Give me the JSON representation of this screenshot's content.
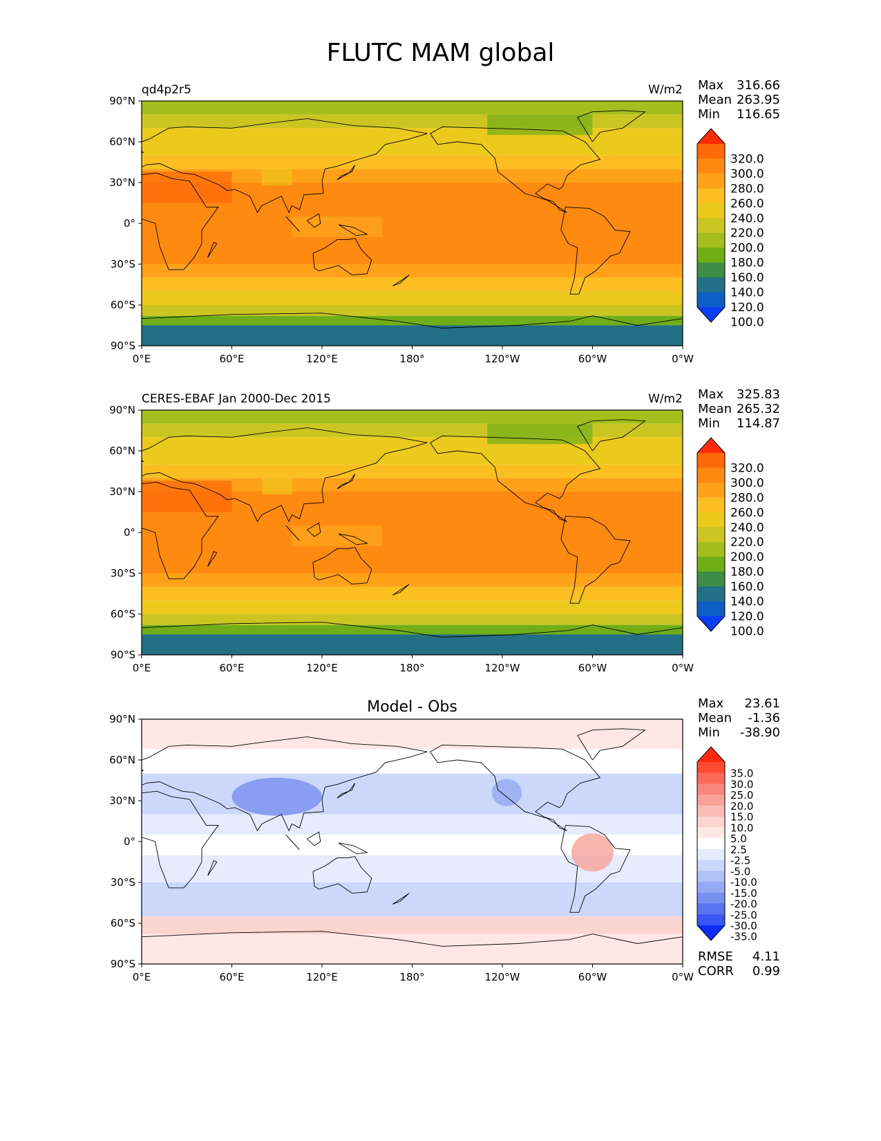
{
  "figure": {
    "title": "FLUTC MAM global"
  },
  "chart_data": [
    {
      "type": "heatmap",
      "title_left": "qd4p2r5",
      "title_center": "",
      "units": "W/m2",
      "stats": [
        {
          "label": "Max",
          "value": "316.66"
        },
        {
          "label": "Mean",
          "value": "263.95"
        },
        {
          "label": "Min",
          "value": "116.65"
        }
      ],
      "extra_stats": [],
      "xticks": [
        "0°E",
        "60°E",
        "120°E",
        "180°",
        "120°W",
        "60°W",
        "0°W"
      ],
      "yticks": [
        "90°N",
        "60°N",
        "30°N",
        "0°",
        "30°S",
        "60°S",
        "90°S"
      ],
      "xlim": [
        0,
        360
      ],
      "ylim": [
        -90,
        90
      ],
      "colorbar": {
        "levels": [
          "320.0",
          "300.0",
          "280.0",
          "260.0",
          "240.0",
          "220.0",
          "200.0",
          "180.0",
          "160.0",
          "140.0",
          "120.0",
          "100.0"
        ],
        "colors": [
          "#ff2a08",
          "#ff6a08",
          "#ff8a12",
          "#ffa21a",
          "#fbbf22",
          "#ecc91d",
          "#cbc522",
          "#a4be1e",
          "#70ae18",
          "#3d8c48",
          "#236f86",
          "#0e5fc3",
          "#0a3df4"
        ]
      }
    },
    {
      "type": "heatmap",
      "title_left": "CERES-EBAF Jan 2000-Dec 2015",
      "title_center": "",
      "units": "W/m2",
      "stats": [
        {
          "label": "Max",
          "value": "325.83"
        },
        {
          "label": "Mean",
          "value": "265.32"
        },
        {
          "label": "Min",
          "value": "114.87"
        }
      ],
      "extra_stats": [],
      "xticks": [
        "0°E",
        "60°E",
        "120°E",
        "180°",
        "120°W",
        "60°W",
        "0°W"
      ],
      "yticks": [
        "90°N",
        "60°N",
        "30°N",
        "0°",
        "30°S",
        "60°S",
        "90°S"
      ],
      "xlim": [
        0,
        360
      ],
      "ylim": [
        -90,
        90
      ],
      "colorbar": {
        "levels": [
          "320.0",
          "300.0",
          "280.0",
          "260.0",
          "240.0",
          "220.0",
          "200.0",
          "180.0",
          "160.0",
          "140.0",
          "120.0",
          "100.0"
        ],
        "colors": [
          "#ff2a08",
          "#ff6a08",
          "#ff8a12",
          "#ffa21a",
          "#fbbf22",
          "#ecc91d",
          "#cbc522",
          "#a4be1e",
          "#70ae18",
          "#3d8c48",
          "#236f86",
          "#0e5fc3",
          "#0a3df4"
        ]
      }
    },
    {
      "type": "heatmap",
      "title_left": "",
      "title_center": "Model - Obs",
      "units": "",
      "stats": [
        {
          "label": "Max",
          "value": "23.61"
        },
        {
          "label": "Mean",
          "value": "-1.36"
        },
        {
          "label": "Min",
          "value": "-38.90"
        }
      ],
      "extra_stats": [
        {
          "label": "RMSE",
          "value": "4.11"
        },
        {
          "label": "CORR",
          "value": "0.99"
        }
      ],
      "xticks": [
        "0°E",
        "60°E",
        "120°E",
        "180°",
        "120°W",
        "60°W",
        "0°W"
      ],
      "yticks": [
        "90°N",
        "60°N",
        "30°N",
        "0°",
        "30°S",
        "60°S",
        "90°S"
      ],
      "xlim": [
        0,
        360
      ],
      "ylim": [
        -90,
        90
      ],
      "colorbar": {
        "levels": [
          "35.0",
          "30.0",
          "25.0",
          "20.0",
          "15.0",
          "10.0",
          "5.0",
          "2.5",
          "-2.5",
          "-5.0",
          "-10.0",
          "-15.0",
          "-20.0",
          "-25.0",
          "-30.0",
          "-35.0"
        ],
        "colors": [
          "#ff2a10",
          "#ff4a36",
          "#fb6a58",
          "#f8867a",
          "#f8a29a",
          "#fabcb6",
          "#fcd4d0",
          "#fde8e6",
          "#ffffff",
          "#e6ecfd",
          "#ccd8fb",
          "#b0c2f7",
          "#94a9f4",
          "#7890f0",
          "#5a74f0",
          "#3a56f2",
          "#0a2cf6"
        ]
      }
    }
  ]
}
